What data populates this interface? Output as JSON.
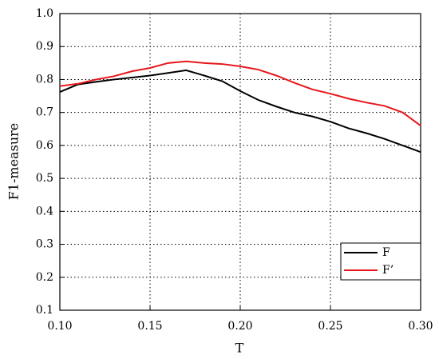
{
  "chart_data": {
    "type": "line",
    "x_label": "T",
    "y_label": "F1-measure",
    "x": [
      0.1,
      0.11,
      0.12,
      0.13,
      0.14,
      0.15,
      0.16,
      0.17,
      0.18,
      0.19,
      0.2,
      0.21,
      0.22,
      0.23,
      0.24,
      0.25,
      0.26,
      0.27,
      0.28,
      0.29,
      0.3
    ],
    "series": [
      {
        "name": "F",
        "color": "#000000",
        "values": [
          0.762,
          0.785,
          0.793,
          0.8,
          0.806,
          0.812,
          0.82,
          0.828,
          0.812,
          0.795,
          0.765,
          0.738,
          0.718,
          0.7,
          0.688,
          0.672,
          0.652,
          0.637,
          0.62,
          0.6,
          0.58
        ]
      },
      {
        "name": "F’",
        "color": "#e8161b",
        "values": [
          0.78,
          0.787,
          0.8,
          0.81,
          0.825,
          0.835,
          0.85,
          0.855,
          0.85,
          0.847,
          0.84,
          0.83,
          0.812,
          0.79,
          0.77,
          0.757,
          0.742,
          0.73,
          0.72,
          0.7,
          0.66
        ]
      }
    ],
    "xlim": [
      0.1,
      0.3
    ],
    "xticks": [
      {
        "value": 0.1,
        "label": "0.10"
      },
      0.15,
      {
        "value": 0.2,
        "label": "0.20"
      },
      0.25,
      {
        "value": 0.3,
        "label": "0.30"
      }
    ],
    "ylim": [
      0.1,
      1.0
    ],
    "yticks": [
      0.1,
      0.2,
      0.3,
      0.4,
      0.5,
      0.6,
      0.7,
      0.8,
      0.9,
      {
        "value": 1.0,
        "label": "1.0"
      }
    ],
    "grid": true,
    "legend": "lower right"
  }
}
